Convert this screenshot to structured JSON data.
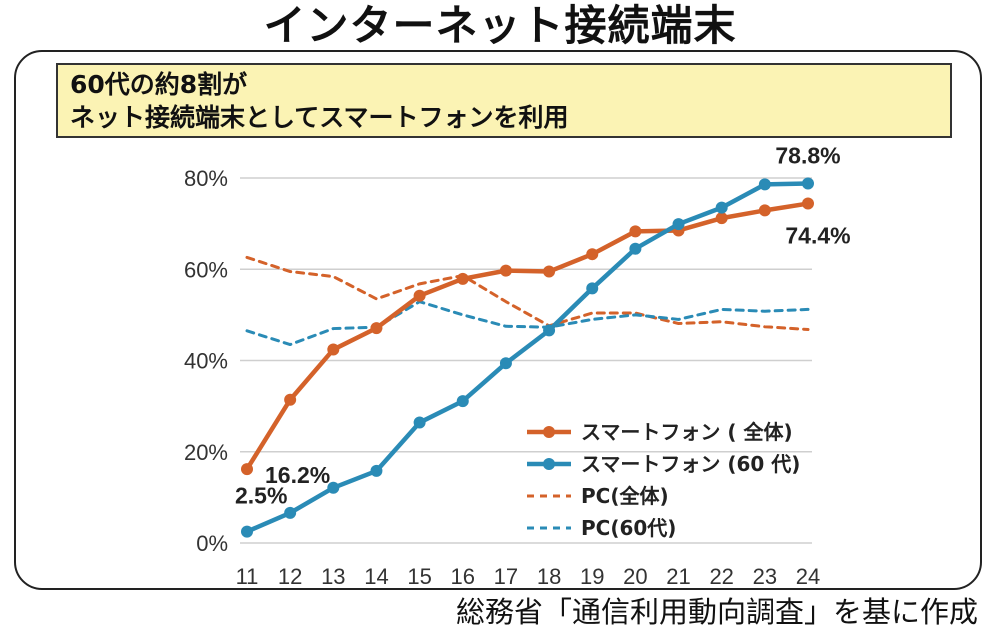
{
  "title": "インターネット接続端末",
  "callout": {
    "line1": "60代の約8割が",
    "line2": "ネット接続端末としてスマートフォンを利用"
  },
  "source": "総務省「通信利用動向調査」を基に作成",
  "chart_data": {
    "type": "line",
    "categories": [
      "11",
      "12",
      "13",
      "14",
      "15",
      "16",
      "17",
      "18",
      "19",
      "20",
      "21",
      "22",
      "23",
      "24"
    ],
    "ylim": [
      0,
      80
    ],
    "yticks": [
      0,
      20,
      40,
      60,
      80
    ],
    "ytick_labels": [
      "0%",
      "20%",
      "40%",
      "60%",
      "80%"
    ],
    "grid": "horizontal",
    "legend_position": "bottom-right",
    "series": [
      {
        "name": "スマートフォン ( 全体)",
        "color": "#d4622a",
        "style": "solid",
        "marker": true,
        "values": [
          16.2,
          31.4,
          42.4,
          47.1,
          54.2,
          57.9,
          59.7,
          59.5,
          63.3,
          68.3,
          68.5,
          71.2,
          72.9,
          74.4
        ]
      },
      {
        "name": "スマートフォン (60 代)",
        "color": "#2a8bb6",
        "style": "solid",
        "marker": true,
        "values": [
          2.5,
          6.6,
          12.1,
          15.8,
          26.4,
          31.1,
          39.4,
          46.6,
          55.8,
          64.5,
          69.9,
          73.5,
          78.6,
          78.8
        ]
      },
      {
        "name": "PC(全体)",
        "color": "#d4622a",
        "style": "dashed",
        "marker": false,
        "values": [
          62.6,
          59.5,
          58.4,
          53.5,
          56.8,
          58.6,
          52.9,
          47.6,
          50.4,
          50.4,
          48.1,
          48.5,
          47.4,
          46.8
        ]
      },
      {
        "name": "PC(60代)",
        "color": "#2a8bb6",
        "style": "dashed",
        "marker": false,
        "values": [
          46.5,
          43.5,
          47.0,
          47.3,
          52.9,
          50.0,
          47.5,
          47.3,
          49.0,
          50.0,
          49.0,
          51.2,
          50.8,
          51.2
        ]
      }
    ],
    "annotations": [
      {
        "text": "16.2%",
        "series": 0,
        "index": 0
      },
      {
        "text": "2.5%",
        "series": 1,
        "index": 0
      },
      {
        "text": "78.8%",
        "series": 1,
        "index": 13
      },
      {
        "text": "74.4%",
        "series": 0,
        "index": 13
      }
    ]
  }
}
